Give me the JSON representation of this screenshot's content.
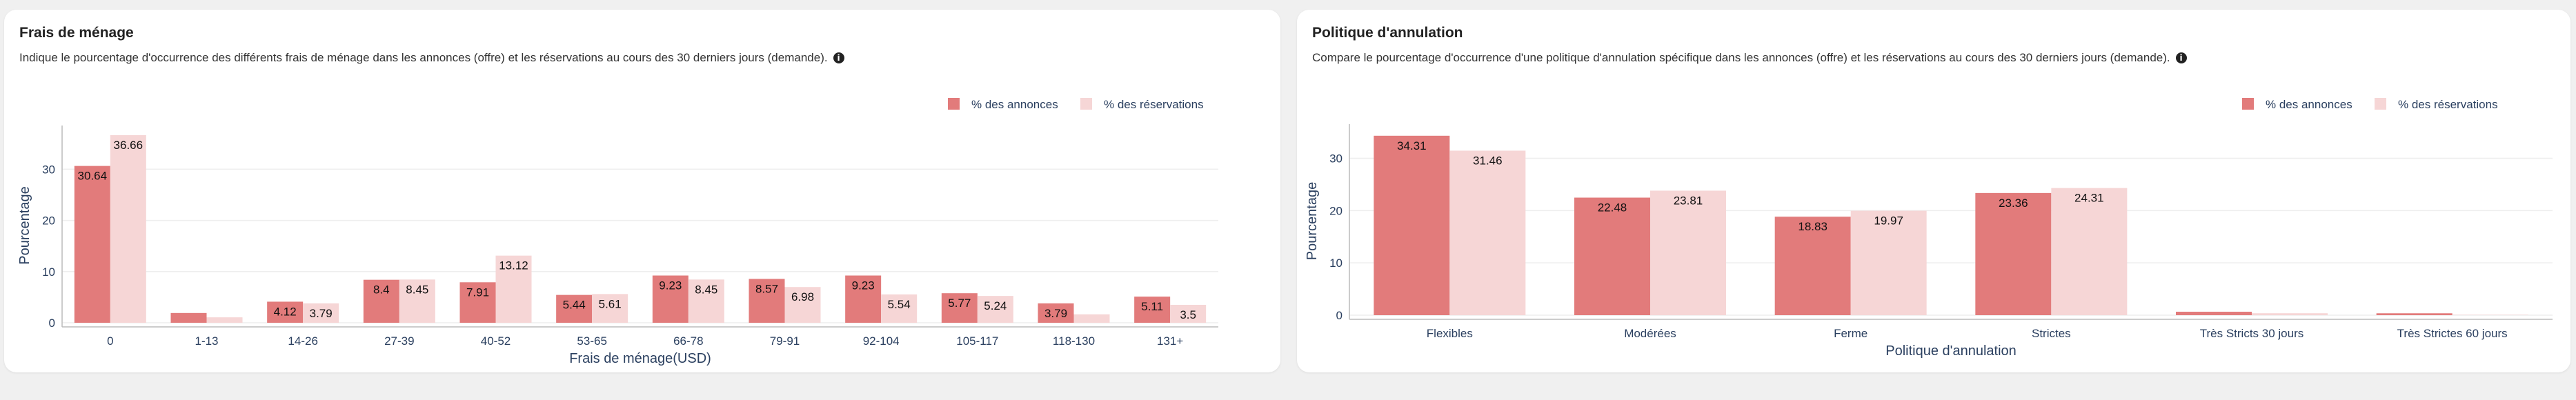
{
  "colors": {
    "annonces": "#e27b7b",
    "reservations": "#f6d6d6",
    "axis": "#2a3f5f",
    "grid": "#eeeeee"
  },
  "panels": [
    {
      "title": "Frais de ménage",
      "description": "Indique le pourcentage d'occurrence des différents frais de ménage dans les annonces (offre) et les réservations au cours des 30 derniers jours (demande).",
      "info_icon": "info-icon"
    },
    {
      "title": "Politique d'annulation",
      "description": "Compare le pourcentage d'occurrence d'une politique d'annulation spécifique dans les annonces (offre) et les réservations au cours des 30 derniers jours (demande).",
      "info_icon": "info-icon"
    }
  ],
  "chart_data": [
    {
      "type": "bar",
      "xlabel": "Frais de ménage(USD)",
      "ylabel": "Pourcentage",
      "ylim": [
        0,
        38
      ],
      "yticks": [
        0,
        10,
        20,
        30
      ],
      "grid": true,
      "legend_position": "top-right",
      "categories": [
        "0",
        "1-13",
        "14-26",
        "27-39",
        "40-52",
        "53-65",
        "66-78",
        "79-91",
        "92-104",
        "105-117",
        "118-130",
        "131+"
      ],
      "series": [
        {
          "name": "% des annonces",
          "values": [
            30.64,
            1.91,
            4.12,
            8.4,
            7.91,
            5.44,
            9.23,
            8.57,
            9.23,
            5.77,
            3.79,
            5.11
          ],
          "labels": [
            "30.64",
            "",
            "4.12",
            "8.4",
            "7.91",
            "5.44",
            "9.23",
            "8.57",
            "9.23",
            "5.77",
            "3.79",
            "5.11"
          ]
        },
        {
          "name": "% des réservations",
          "values": [
            36.66,
            1.06,
            3.79,
            8.45,
            13.12,
            5.61,
            8.45,
            6.98,
            5.54,
            5.24,
            1.65,
            3.5
          ],
          "labels": [
            "36.66",
            "",
            "3.79",
            "8.45",
            "13.12",
            "5.61",
            "8.45",
            "6.98",
            "5.54",
            "5.24",
            "",
            "3.5"
          ]
        }
      ]
    },
    {
      "type": "bar",
      "xlabel": "Politique d'annulation",
      "ylabel": "Pourcentage",
      "ylim": [
        0,
        36
      ],
      "yticks": [
        0,
        10,
        20,
        30
      ],
      "grid": true,
      "legend_position": "top-right",
      "categories": [
        "Flexibles",
        "Modérées",
        "Ferme",
        "Strictes",
        "Très Stricts 30 jours",
        "Très Strictes 60 jours"
      ],
      "series": [
        {
          "name": "% des annonces",
          "values": [
            34.31,
            22.48,
            18.83,
            23.36,
            0.66,
            0.36
          ],
          "labels": [
            "34.31",
            "22.48",
            "18.83",
            "23.36",
            "",
            ""
          ]
        },
        {
          "name": "% des réservations",
          "values": [
            31.46,
            23.81,
            19.97,
            24.31,
            0.37,
            0.08
          ],
          "labels": [
            "31.46",
            "23.81",
            "19.97",
            "24.31",
            "",
            ""
          ]
        }
      ]
    }
  ]
}
